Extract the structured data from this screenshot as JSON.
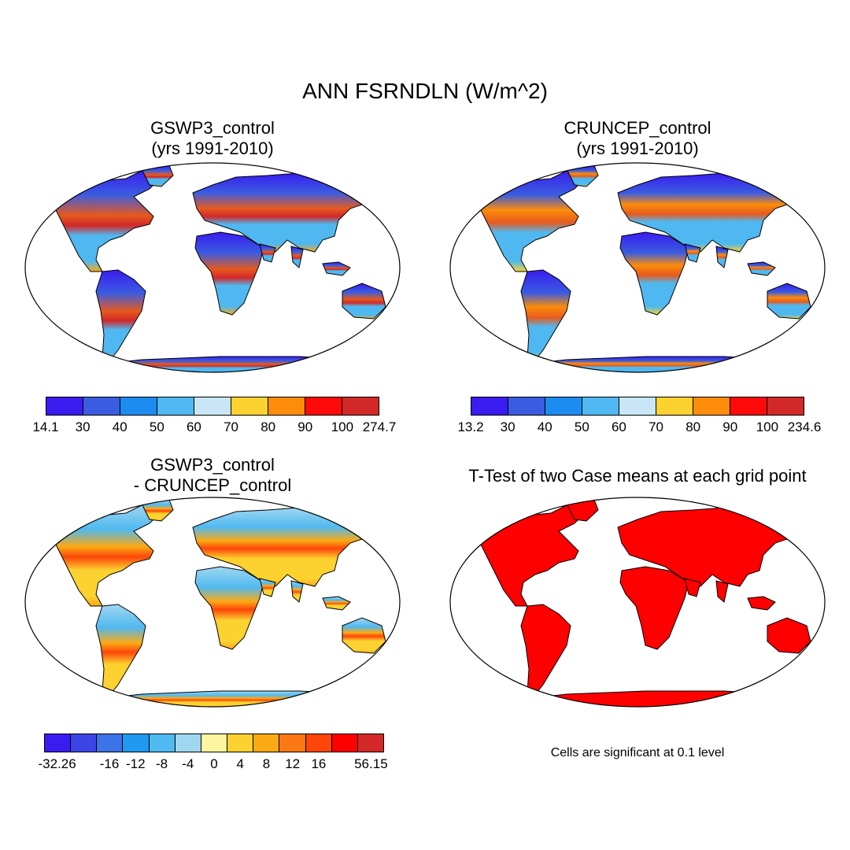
{
  "title": "ANN FSRNDLN (W/m^2)",
  "panels": {
    "p1": {
      "title": "GSWP3_control",
      "subtitle": "(yrs 1991-2010)"
    },
    "p2": {
      "title": "CRUNCEP_control",
      "subtitle": "(yrs 1991-2010)"
    },
    "p3": {
      "title": "GSWP3_control",
      "subtitle": "- CRUNCEP_control"
    },
    "p4": {
      "title": "T-Test of two Case means at each grid point",
      "note": "Cells are significant at 0.1 level",
      "significance_color": "#ff0000"
    }
  },
  "colorbars": {
    "p1": {
      "colors": [
        "#3a1cf0",
        "#3a5ce0",
        "#1c8cf0",
        "#50b8f0",
        "#c8e6f5",
        "#fcd230",
        "#fc8c0a",
        "#ff0a0a",
        "#d22828"
      ],
      "labels": [
        "14.1",
        "30",
        "40",
        "50",
        "60",
        "70",
        "80",
        "90",
        "100",
        "274.7"
      ]
    },
    "p2": {
      "colors": [
        "#3a1cf0",
        "#3a5ce0",
        "#1c8cf0",
        "#50b8f0",
        "#c8e6f5",
        "#fcd230",
        "#fc8c0a",
        "#ff0a0a",
        "#d22828"
      ],
      "labels": [
        "13.2",
        "30",
        "40",
        "50",
        "60",
        "70",
        "80",
        "90",
        "100",
        "234.6"
      ]
    },
    "p3": {
      "colors": [
        "#3a1cf0",
        "#3c46e6",
        "#3c73e6",
        "#1e9bf0",
        "#50b9f0",
        "#a0d7f0",
        "#fff5a0",
        "#fcd230",
        "#fcaa14",
        "#fc7814",
        "#fc460a",
        "#ff0000",
        "#d22828"
      ],
      "labels": [
        "-32.26",
        "",
        "-16",
        "-12",
        "-8",
        "-4",
        "0",
        "4",
        "8",
        "12",
        "16",
        "",
        "56.15"
      ]
    }
  }
}
